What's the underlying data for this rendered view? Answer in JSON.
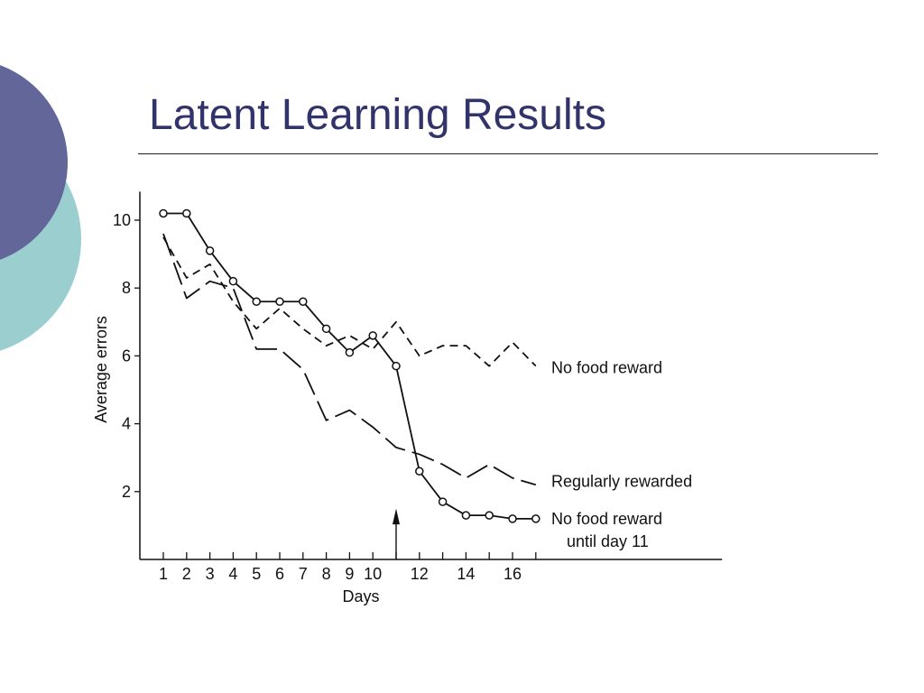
{
  "slide": {
    "title": "Latent Learning Results",
    "colors": {
      "title": "#33336b",
      "circle_purple": "#636699",
      "circle_teal": "#9bcecf"
    }
  },
  "chart_data": {
    "type": "line",
    "title": "",
    "xlabel": "Days",
    "ylabel": "Average errors",
    "xlim": [
      0.5,
      25
    ],
    "ylim": [
      0,
      11
    ],
    "x_ticks": [
      1,
      2,
      3,
      4,
      5,
      6,
      7,
      8,
      9,
      10,
      11,
      12,
      13,
      14,
      15,
      16,
      17
    ],
    "x_tick_labels": [
      "1",
      "2",
      "3",
      "4",
      "5",
      "6",
      "7",
      "8",
      "9",
      "10",
      "12",
      "14",
      "16"
    ],
    "x_tick_label_values": [
      1,
      2,
      3,
      4,
      5,
      6,
      7,
      8,
      9,
      10,
      12,
      14,
      16
    ],
    "y_ticks": [
      2,
      4,
      6,
      8,
      10
    ],
    "y_tick_labels": [
      "2",
      "4",
      "6",
      "8",
      "10"
    ],
    "annotation_arrow_day": 11,
    "grid": false,
    "series": [
      {
        "name": "No food reward",
        "style": "short-dash",
        "x": [
          1,
          2,
          3,
          4,
          5,
          6,
          7,
          8,
          9,
          10,
          11,
          12,
          13,
          14,
          15,
          16,
          17
        ],
        "y": [
          9.5,
          8.3,
          8.7,
          7.6,
          6.8,
          7.4,
          6.8,
          6.3,
          6.6,
          6.2,
          7.0,
          6.0,
          6.3,
          6.3,
          5.7,
          6.4,
          5.7
        ]
      },
      {
        "name": "Regularly rewarded",
        "style": "long-dash",
        "x": [
          1,
          2,
          3,
          4,
          5,
          6,
          7,
          8,
          9,
          10,
          11,
          12,
          13,
          14,
          15,
          16,
          17
        ],
        "y": [
          9.6,
          7.7,
          8.2,
          8.0,
          6.2,
          6.2,
          5.6,
          4.1,
          4.4,
          3.9,
          3.3,
          3.1,
          2.8,
          2.4,
          2.8,
          2.4,
          2.2
        ]
      },
      {
        "name": "No food reward until day 11",
        "label_lines": [
          "No food reward",
          "until day 11"
        ],
        "style": "solid-markers",
        "x": [
          1,
          2,
          3,
          4,
          5,
          6,
          7,
          8,
          9,
          10,
          11,
          12,
          13,
          14,
          15,
          16,
          17
        ],
        "y": [
          10.2,
          10.2,
          9.1,
          8.2,
          7.6,
          7.6,
          7.6,
          6.8,
          6.1,
          6.6,
          5.7,
          2.6,
          1.7,
          1.3,
          1.3,
          1.2,
          1.2
        ]
      }
    ]
  }
}
